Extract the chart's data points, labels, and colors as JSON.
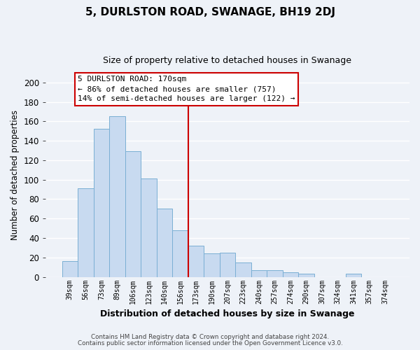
{
  "title": "5, DURLSTON ROAD, SWANAGE, BH19 2DJ",
  "subtitle": "Size of property relative to detached houses in Swanage",
  "xlabel": "Distribution of detached houses by size in Swanage",
  "ylabel": "Number of detached properties",
  "bar_color": "#c8daf0",
  "bar_edge_color": "#7aafd4",
  "categories": [
    "39sqm",
    "56sqm",
    "73sqm",
    "89sqm",
    "106sqm",
    "123sqm",
    "140sqm",
    "156sqm",
    "173sqm",
    "190sqm",
    "207sqm",
    "223sqm",
    "240sqm",
    "257sqm",
    "274sqm",
    "290sqm",
    "307sqm",
    "324sqm",
    "341sqm",
    "357sqm",
    "374sqm"
  ],
  "values": [
    16,
    91,
    152,
    165,
    129,
    101,
    70,
    48,
    32,
    24,
    25,
    15,
    7,
    7,
    5,
    3,
    0,
    0,
    3,
    0,
    0
  ],
  "ylim": [
    0,
    210
  ],
  "yticks": [
    0,
    20,
    40,
    60,
    80,
    100,
    120,
    140,
    160,
    180,
    200
  ],
  "vline_color": "#cc0000",
  "annotation_title": "5 DURLSTON ROAD: 170sqm",
  "annotation_line1": "← 86% of detached houses are smaller (757)",
  "annotation_line2": "14% of semi-detached houses are larger (122) →",
  "annotation_box_color": "#ffffff",
  "annotation_box_edge": "#cc0000",
  "footer1": "Contains HM Land Registry data © Crown copyright and database right 2024.",
  "footer2": "Contains public sector information licensed under the Open Government Licence v3.0.",
  "background_color": "#eef2f8",
  "grid_color": "#ffffff"
}
